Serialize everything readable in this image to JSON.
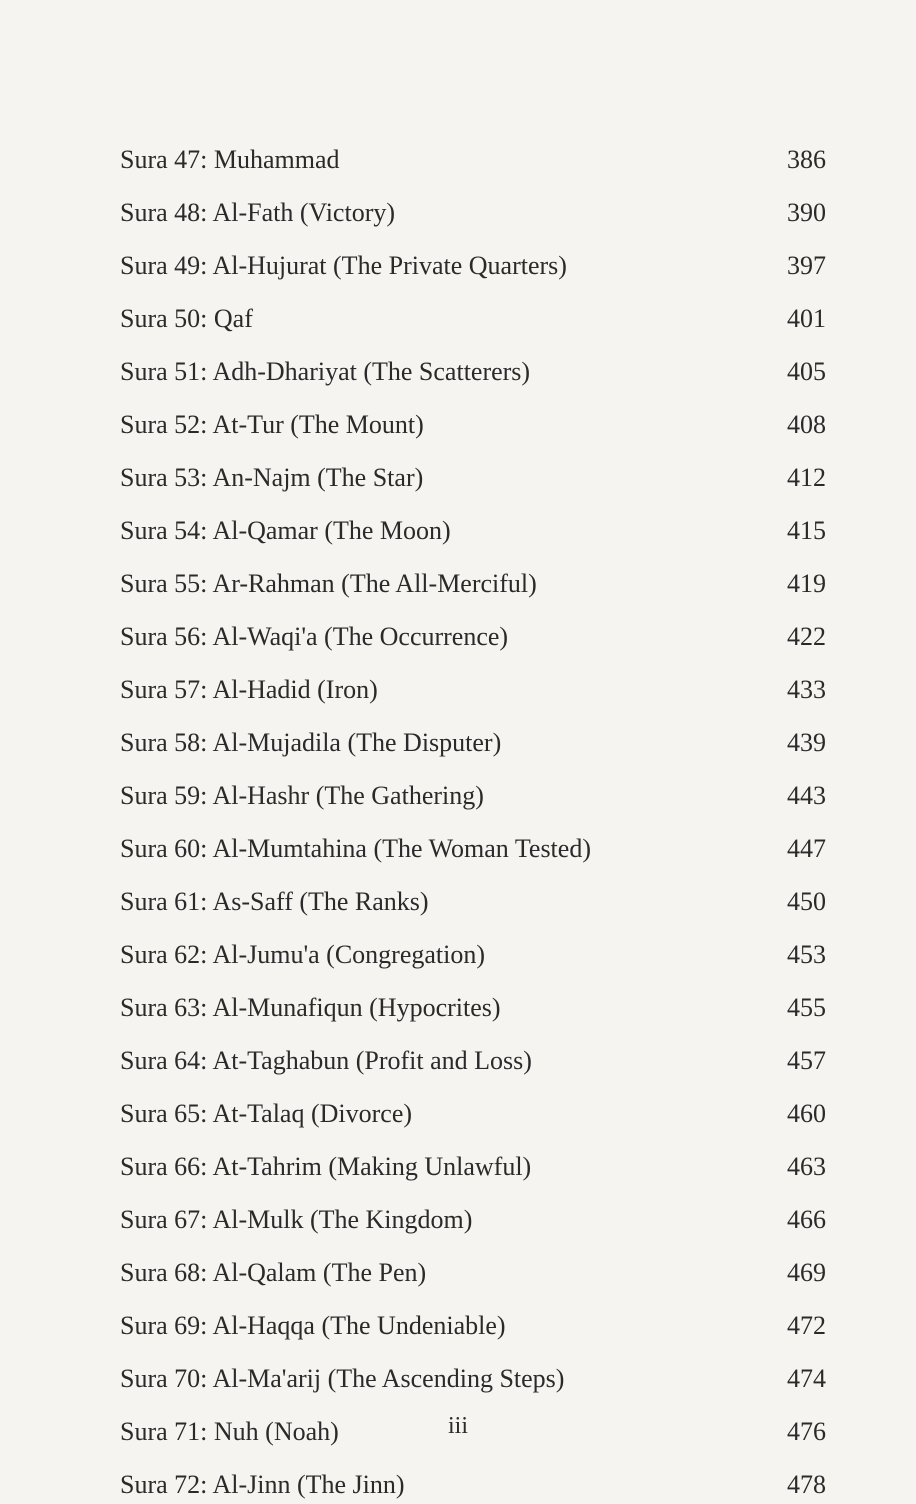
{
  "entries": [
    {
      "title": "Sura 47: Muhammad",
      "page": "386"
    },
    {
      "title": "Sura 48: Al-Fath (Victory)",
      "page": "390"
    },
    {
      "title": "Sura 49: Al-Hujurat (The Private Quarters)",
      "page": "397"
    },
    {
      "title": "Sura 50: Qaf",
      "page": "401"
    },
    {
      "title": "Sura 51: Adh-Dhariyat (The Scatterers)",
      "page": "405"
    },
    {
      "title": "Sura 52: At-Tur (The Mount)",
      "page": "408"
    },
    {
      "title": "Sura 53: An-Najm (The Star)",
      "page": "412"
    },
    {
      "title": "Sura 54: Al-Qamar (The Moon)",
      "page": "415"
    },
    {
      "title": "Sura 55: Ar-Rahman (The All-Merciful)",
      "page": "419"
    },
    {
      "title": "Sura 56: Al-Waqi'a (The Occurrence)",
      "page": "422"
    },
    {
      "title": "Sura 57: Al-Hadid (Iron)",
      "page": "433"
    },
    {
      "title": "Sura 58: Al-Mujadila (The Disputer)",
      "page": "439"
    },
    {
      "title": "Sura 59: Al-Hashr (The Gathering)",
      "page": "443"
    },
    {
      "title": "Sura 60: Al-Mumtahina (The Woman Tested)",
      "page": "447"
    },
    {
      "title": "Sura 61: As-Saff (The Ranks)",
      "page": "450"
    },
    {
      "title": "Sura 62: Al-Jumu'a (Congregation)",
      "page": "453"
    },
    {
      "title": "Sura 63: Al-Munafiqun (Hypocrites)",
      "page": "455"
    },
    {
      "title": "Sura 64: At-Taghabun (Profit and Loss)",
      "page": "457"
    },
    {
      "title": "Sura 65: At-Talaq (Divorce)",
      "page": "460"
    },
    {
      "title": "Sura 66: At-Tahrim (Making Unlawful)",
      "page": "463"
    },
    {
      "title": "Sura 67: Al-Mulk (The Kingdom)",
      "page": "466"
    },
    {
      "title": "Sura 68: Al-Qalam (The Pen)",
      "page": "469"
    },
    {
      "title": "Sura 69: Al-Haqqa (The Undeniable)",
      "page": "472"
    },
    {
      "title": "Sura 70: Al-Ma'arij (The Ascending Steps)",
      "page": "474"
    },
    {
      "title": "Sura 71: Nuh (Noah)",
      "page": "476"
    },
    {
      "title": "Sura 72: Al-Jinn (The Jinn)",
      "page": "478"
    }
  ],
  "page_number": "iii",
  "styling": {
    "background_color": "#f5f4f0",
    "text_color": "#2a2a2a",
    "font_family": "Georgia, 'Times New Roman', serif",
    "font_size": 26,
    "row_gap": 14,
    "line_height": 1.5
  }
}
